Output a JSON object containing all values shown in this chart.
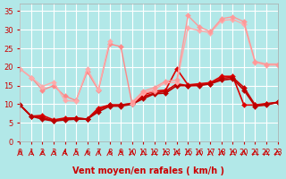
{
  "title": "",
  "xlabel": "Vent moyen/en rafales ( km/h )",
  "ylabel": "",
  "background_color": "#b2e8e8",
  "grid_color": "#ffffff",
  "xlim": [
    0,
    23
  ],
  "ylim": [
    0,
    37
  ],
  "yticks": [
    0,
    5,
    10,
    15,
    20,
    25,
    30,
    35
  ],
  "xticks": [
    0,
    1,
    2,
    3,
    4,
    5,
    6,
    7,
    8,
    9,
    10,
    11,
    12,
    13,
    14,
    15,
    16,
    17,
    18,
    19,
    20,
    21,
    22,
    23
  ],
  "series": [
    {
      "x": [
        0,
        1,
        2,
        3,
        4,
        5,
        6,
        7,
        8,
        9,
        10,
        11,
        12,
        13,
        14,
        15,
        16,
        17,
        18,
        19,
        20,
        21,
        22,
        23
      ],
      "y": [
        9.8,
        6.8,
        7.0,
        5.8,
        6.3,
        6.3,
        6.0,
        9.0,
        9.8,
        9.8,
        10.2,
        12.5,
        13.5,
        13.8,
        19.5,
        15.2,
        15.5,
        15.8,
        17.5,
        17.5,
        9.8,
        9.8,
        10.2,
        10.5
      ],
      "color": "#dd0000",
      "linewidth": 1.2,
      "markersize": 3
    },
    {
      "x": [
        0,
        1,
        2,
        3,
        4,
        5,
        6,
        7,
        8,
        9,
        10,
        11,
        12,
        13,
        14,
        15,
        16,
        17,
        18,
        19,
        20,
        21,
        22,
        23
      ],
      "y": [
        9.8,
        6.8,
        6.5,
        5.5,
        6.0,
        6.3,
        6.0,
        8.5,
        9.8,
        9.8,
        10.2,
        12.0,
        13.0,
        13.5,
        15.5,
        15.0,
        15.2,
        15.5,
        17.0,
        17.2,
        14.5,
        9.8,
        10.0,
        10.5
      ],
      "color": "#cc0000",
      "linewidth": 1.2,
      "markersize": 3
    },
    {
      "x": [
        0,
        1,
        2,
        3,
        4,
        5,
        6,
        7,
        8,
        9,
        10,
        11,
        12,
        13,
        14,
        15,
        16,
        17,
        18,
        19,
        20,
        21,
        22,
        23
      ],
      "y": [
        9.8,
        6.8,
        6.0,
        5.5,
        5.8,
        6.0,
        6.0,
        8.0,
        9.5,
        9.5,
        10.0,
        11.5,
        12.8,
        13.0,
        15.0,
        15.0,
        15.0,
        15.5,
        16.5,
        16.8,
        13.8,
        9.5,
        9.8,
        10.5
      ],
      "color": "#bb0000",
      "linewidth": 1.2,
      "markersize": 3
    },
    {
      "x": [
        0,
        1,
        2,
        3,
        4,
        5,
        6,
        7,
        8,
        9,
        10,
        11,
        12,
        13,
        14,
        15,
        16,
        17,
        18,
        19,
        20,
        21,
        22,
        23
      ],
      "y": [
        19.5,
        17.2,
        13.8,
        15.0,
        12.2,
        11.0,
        18.8,
        13.8,
        26.2,
        25.5,
        10.2,
        13.0,
        13.5,
        null,
        null,
        null,
        null,
        null,
        null,
        null,
        null,
        null,
        null,
        null
      ],
      "color": "#ff8888",
      "linewidth": 1.0,
      "markersize": 3
    },
    {
      "x": [
        0,
        1,
        2,
        3,
        4,
        5,
        6,
        7,
        8,
        9,
        10,
        11,
        12,
        13,
        14,
        15,
        16,
        17,
        18,
        19,
        20,
        21,
        22,
        23
      ],
      "y": [
        19.5,
        17.2,
        14.8,
        16.0,
        11.0,
        10.8,
        19.5,
        14.0,
        27.0,
        null,
        null,
        null,
        null,
        null,
        null,
        null,
        null,
        null,
        null,
        null,
        null,
        null,
        null,
        null
      ],
      "color": "#ffaaaa",
      "linewidth": 1.0,
      "markersize": 3
    },
    {
      "x": [
        0,
        1,
        2,
        3,
        4,
        5,
        6,
        7,
        8,
        9,
        10,
        11,
        12,
        13,
        14,
        15,
        16,
        17,
        18,
        19,
        20,
        21,
        22,
        23
      ],
      "y": [
        null,
        null,
        null,
        null,
        null,
        null,
        null,
        null,
        null,
        null,
        10.0,
        13.0,
        14.0,
        15.8,
        15.8,
        30.5,
        29.8,
        29.2,
        32.5,
        32.8,
        31.5,
        21.2,
        20.5,
        20.5
      ],
      "color": "#ffaaaa",
      "linewidth": 1.0,
      "markersize": 3
    },
    {
      "x": [
        0,
        1,
        2,
        3,
        4,
        5,
        6,
        7,
        8,
        9,
        10,
        11,
        12,
        13,
        14,
        15,
        16,
        17,
        18,
        19,
        20,
        21,
        22,
        23
      ],
      "y": [
        null,
        null,
        null,
        null,
        null,
        null,
        null,
        null,
        null,
        null,
        10.5,
        13.5,
        14.5,
        16.2,
        16.5,
        33.8,
        30.8,
        29.5,
        33.0,
        33.5,
        32.2,
        21.5,
        20.8,
        20.8
      ],
      "color": "#ff9999",
      "linewidth": 1.0,
      "markersize": 3
    }
  ],
  "arrow_color": "#cc0000",
  "text_color": "#cc0000",
  "xlabel_fontsize": 7,
  "tick_fontsize": 6
}
